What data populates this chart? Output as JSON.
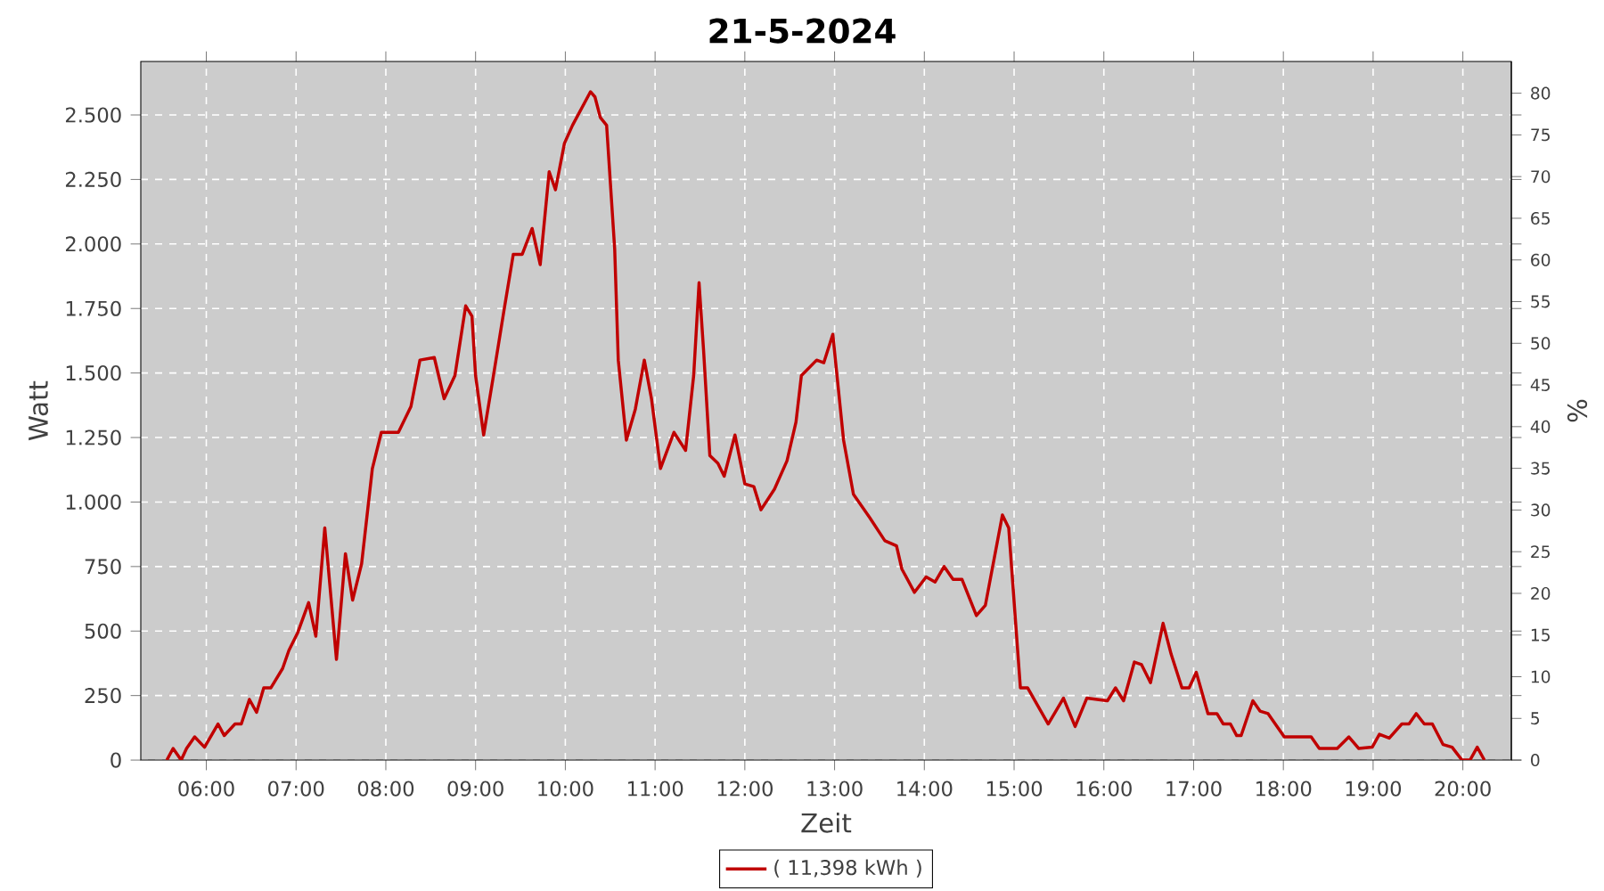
{
  "chart_data": {
    "type": "line",
    "title": "21-5-2024",
    "xlabel": "Zeit",
    "ylabel": "Watt",
    "y2label": "%",
    "x": [
      5.56,
      5.63,
      5.72,
      5.78,
      5.87,
      5.98,
      6.13,
      6.2,
      6.32,
      6.39,
      6.48,
      6.56,
      6.64,
      6.72,
      6.85,
      6.92,
      7.02,
      7.14,
      7.22,
      7.32,
      7.45,
      7.55,
      7.63,
      7.73,
      7.85,
      7.95,
      8.14,
      8.28,
      8.38,
      8.54,
      8.65,
      8.77,
      8.89,
      8.96,
      9.0,
      9.09,
      9.19,
      9.32,
      9.42,
      9.52,
      9.63,
      9.72,
      9.82,
      9.89,
      9.99,
      10.08,
      10.28,
      10.33,
      10.39,
      10.46,
      10.55,
      10.59,
      10.68,
      10.78,
      10.88,
      10.96,
      11.06,
      11.21,
      11.34,
      11.43,
      11.49,
      11.54,
      11.61,
      11.7,
      11.77,
      11.89,
      12.0,
      12.1,
      12.18,
      12.33,
      12.47,
      12.57,
      12.63,
      12.8,
      12.88,
      12.98,
      13.1,
      13.21,
      13.39,
      13.56,
      13.69,
      13.75,
      13.89,
      14.02,
      14.12,
      14.22,
      14.32,
      14.42,
      14.58,
      14.68,
      14.87,
      14.94,
      15.07,
      15.15,
      15.38,
      15.55,
      15.68,
      15.81,
      16.04,
      16.13,
      16.22,
      16.34,
      16.42,
      16.52,
      16.66,
      16.75,
      16.87,
      16.95,
      17.03,
      17.16,
      17.26,
      17.33,
      17.41,
      17.48,
      17.53,
      17.66,
      17.74,
      17.83,
      18.01,
      18.31,
      18.4,
      18.6,
      18.73,
      18.84,
      18.99,
      19.07,
      19.18,
      19.32,
      19.4,
      19.48,
      19.57,
      19.66,
      19.78,
      19.88,
      19.99,
      20.08,
      20.16,
      20.24
    ],
    "series": [
      {
        "name": "( 11,398 kWh )",
        "color": "#c00000",
        "values": [
          0,
          45,
          0,
          45,
          90,
          50,
          140,
          95,
          140,
          140,
          235,
          185,
          280,
          280,
          355,
          425,
          495,
          610,
          480,
          900,
          390,
          800,
          620,
          760,
          1130,
          1270,
          1270,
          1370,
          1550,
          1560,
          1400,
          1490,
          1760,
          1720,
          1490,
          1260,
          1470,
          1750,
          1960,
          1960,
          2060,
          1920,
          2280,
          2210,
          2390,
          2460,
          2590,
          2570,
          2490,
          2460,
          1980,
          1550,
          1240,
          1360,
          1550,
          1400,
          1130,
          1270,
          1200,
          1490,
          1850,
          1590,
          1180,
          1150,
          1100,
          1260,
          1070,
          1060,
          970,
          1050,
          1160,
          1310,
          1490,
          1550,
          1540,
          1650,
          1240,
          1030,
          940,
          850,
          830,
          740,
          650,
          710,
          690,
          750,
          700,
          700,
          560,
          600,
          950,
          900,
          280,
          280,
          140,
          240,
          130,
          240,
          230,
          280,
          230,
          380,
          370,
          300,
          530,
          410,
          280,
          280,
          340,
          180,
          180,
          140,
          140,
          95,
          95,
          230,
          190,
          180,
          90,
          90,
          45,
          45,
          90,
          45,
          50,
          100,
          85,
          140,
          140,
          180,
          140,
          140,
          60,
          50,
          0,
          0,
          50,
          0
        ]
      }
    ],
    "xlim": [
      5.27,
      20.54
    ],
    "ylim": [
      0,
      2707
    ],
    "y2lim": [
      0,
      83.8
    ],
    "xticks": [
      {
        "value": 6,
        "label": "06:00"
      },
      {
        "value": 7,
        "label": "07:00"
      },
      {
        "value": 8,
        "label": "08:00"
      },
      {
        "value": 9,
        "label": "09:00"
      },
      {
        "value": 10,
        "label": "10:00"
      },
      {
        "value": 11,
        "label": "11:00"
      },
      {
        "value": 12,
        "label": "12:00"
      },
      {
        "value": 13,
        "label": "13:00"
      },
      {
        "value": 14,
        "label": "14:00"
      },
      {
        "value": 15,
        "label": "15:00"
      },
      {
        "value": 16,
        "label": "16:00"
      },
      {
        "value": 17,
        "label": "17:00"
      },
      {
        "value": 18,
        "label": "18:00"
      },
      {
        "value": 19,
        "label": "19:00"
      },
      {
        "value": 20,
        "label": "20:00"
      }
    ],
    "yticks": [
      0,
      250,
      500,
      750,
      {
        "value": 1000,
        "label": "1.000"
      },
      {
        "value": 1250,
        "label": "1.250"
      },
      {
        "value": 1500,
        "label": "1.500"
      },
      {
        "value": 1750,
        "label": "1.750"
      },
      {
        "value": 2000,
        "label": "2.000"
      },
      {
        "value": 2250,
        "label": "2.250"
      },
      {
        "value": 2500,
        "label": "2.500"
      }
    ],
    "y2ticks": [
      0,
      5,
      10,
      15,
      20,
      25,
      30,
      35,
      40,
      45,
      50,
      55,
      60,
      65,
      70,
      75,
      80
    ],
    "grid": true,
    "legend": "bottom"
  }
}
